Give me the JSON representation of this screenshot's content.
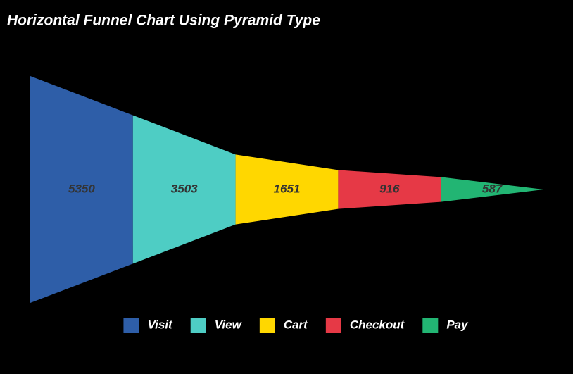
{
  "chart_data": {
    "type": "funnel",
    "title": "Horizontal Funnel Chart Using Pyramid Type",
    "categories": [
      "Visit",
      "View",
      "Cart",
      "Checkout",
      "Pay"
    ],
    "values": [
      5350,
      3503,
      1651,
      916,
      587
    ],
    "colors": [
      "#2e5ea8",
      "#4ecdc4",
      "#ffd700",
      "#e63946",
      "#22b573"
    ],
    "legend": "bottom"
  }
}
